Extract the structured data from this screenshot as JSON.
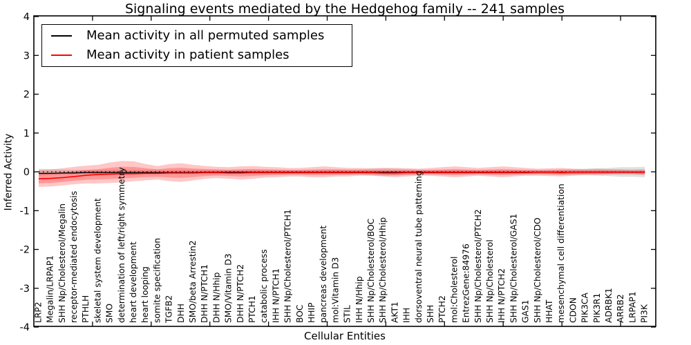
{
  "chart_data": {
    "type": "line",
    "title": "Signaling events mediated by the Hedgehog family -- 241 samples",
    "xlabel": "Cellular Entities",
    "ylabel": "Inferred Activity",
    "ylim": [
      -4,
      4
    ],
    "yticks": [
      4,
      3,
      2,
      1,
      0,
      -1,
      -2,
      -3,
      -4
    ],
    "xtick_values": [
      5,
      10,
      15,
      20,
      25,
      30,
      35,
      40,
      45,
      50
    ],
    "grid": false,
    "legend_position": "upper left",
    "zero_reference_line": "dotted",
    "categories": [
      "LRP2",
      "Megalin/LRPAP1",
      "SHH Np/Cholesterol/Megalin",
      "receptor-mediated endocytosis",
      "PTHLH",
      "skeletal system development",
      "SMO",
      "determination of left/right symmetry",
      "heart development",
      "heart looping",
      "somite specification",
      "TGFB2",
      "DHH",
      "SMO/beta Arrestin2",
      "DHH N/PTCH1",
      "DHH N/Hhip",
      "SMO/Vitamin D3",
      "DHH N/PTCH2",
      "PTCH1",
      "catabolic process",
      "IHH N/PTCH1",
      "SHH Np/Cholesterol/PTCH1",
      "BOC",
      "HHIP",
      "pancreas development",
      "mol:Vitamin D3",
      "STIL",
      "IHH N/Hhip",
      "SHH Np/Cholesterol/BOC",
      "SHH Np/Cholesterol/Hhip",
      "AKT1",
      "IHH",
      "dorsoventral neural tube patterning",
      "SHH",
      "PTCH2",
      "mol:Cholesterol",
      "EntrezGene:84976",
      "SHH Np/Cholesterol/PTCH2",
      "SHH Np/Cholesterol",
      "IHH N/PTCH2",
      "SHH Np/Cholesterol/GAS1",
      "GAS1",
      "SHH Np/Cholesterol/CDO",
      "HHAT",
      "mesenchymal cell differentiation",
      "CDON",
      "PIK3CA",
      "PIK3R1",
      "ADRBK1",
      "ARRB2",
      "LRPAP1",
      "PI3K"
    ],
    "series": [
      {
        "name": "Mean activity in all permuted samples",
        "color": "#000000",
        "band_color": "#aaaaaa",
        "values": [
          -0.04,
          -0.04,
          -0.03,
          -0.03,
          -0.02,
          -0.02,
          -0.02,
          -0.02,
          -0.02,
          -0.02,
          -0.02,
          -0.02,
          -0.02,
          -0.02,
          -0.01,
          -0.01,
          -0.01,
          -0.01,
          -0.01,
          -0.01,
          -0.01,
          -0.01,
          -0.01,
          -0.01,
          -0.01,
          -0.01,
          -0.01,
          -0.01,
          -0.01,
          -0.01,
          -0.01,
          -0.01,
          -0.01,
          -0.01,
          -0.01,
          -0.01,
          -0.01,
          -0.01,
          -0.01,
          -0.01,
          -0.01,
          -0.01,
          -0.01,
          -0.01,
          -0.01,
          -0.01,
          -0.01,
          -0.01,
          -0.01,
          -0.01,
          -0.01,
          -0.01
        ],
        "band_upper": [
          0.08,
          0.07,
          0.06,
          0.05,
          0.05,
          0.05,
          0.05,
          0.05,
          0.05,
          0.05,
          0.05,
          0.05,
          0.05,
          0.05,
          0.05,
          0.05,
          0.05,
          0.05,
          0.05,
          0.05,
          0.05,
          0.05,
          0.05,
          0.05,
          0.05,
          0.06,
          0.06,
          0.06,
          0.08,
          0.09,
          0.08,
          0.07,
          0.06,
          0.05,
          0.05,
          0.05,
          0.05,
          0.05,
          0.05,
          0.05,
          0.05,
          0.05,
          0.05,
          0.05,
          0.06,
          0.07,
          0.08,
          0.09,
          0.1,
          0.12,
          0.12,
          0.13
        ],
        "band_lower": [
          -0.1,
          -0.08,
          -0.07,
          -0.06,
          -0.06,
          -0.06,
          -0.06,
          -0.06,
          -0.06,
          -0.06,
          -0.06,
          -0.06,
          -0.06,
          -0.06,
          -0.06,
          -0.06,
          -0.06,
          -0.06,
          -0.06,
          -0.06,
          -0.06,
          -0.06,
          -0.06,
          -0.06,
          -0.06,
          -0.07,
          -0.07,
          -0.07,
          -0.09,
          -0.1,
          -0.09,
          -0.08,
          -0.07,
          -0.06,
          -0.06,
          -0.06,
          -0.06,
          -0.06,
          -0.06,
          -0.06,
          -0.06,
          -0.06,
          -0.06,
          -0.06,
          -0.07,
          -0.08,
          -0.09,
          -0.1,
          -0.11,
          -0.13,
          -0.13,
          -0.14
        ]
      },
      {
        "name": "Mean activity in patient samples",
        "color": "#ff0000",
        "band_color": "#ff0000",
        "values": [
          -0.18,
          -0.17,
          -0.15,
          -0.12,
          -0.09,
          -0.07,
          -0.06,
          -0.05,
          -0.05,
          -0.04,
          -0.04,
          -0.03,
          -0.03,
          -0.03,
          -0.02,
          -0.02,
          -0.03,
          -0.03,
          -0.02,
          -0.02,
          -0.02,
          -0.02,
          -0.02,
          -0.02,
          -0.02,
          -0.02,
          -0.02,
          -0.02,
          -0.02,
          -0.03,
          -0.03,
          -0.02,
          -0.02,
          -0.02,
          -0.02,
          -0.02,
          -0.02,
          -0.02,
          -0.02,
          -0.02,
          -0.02,
          -0.02,
          -0.01,
          -0.01,
          -0.02,
          -0.01,
          -0.01,
          -0.01,
          -0.01,
          -0.01,
          -0.01,
          -0.01
        ],
        "band_upper": [
          0.05,
          0.06,
          0.09,
          0.13,
          0.16,
          0.18,
          0.24,
          0.28,
          0.27,
          0.2,
          0.15,
          0.2,
          0.22,
          0.18,
          0.15,
          0.13,
          0.12,
          0.14,
          0.15,
          0.13,
          0.12,
          0.1,
          0.1,
          0.12,
          0.14,
          0.12,
          0.1,
          0.1,
          0.09,
          0.1,
          0.1,
          0.09,
          0.08,
          0.1,
          0.12,
          0.14,
          0.12,
          0.1,
          0.12,
          0.14,
          0.12,
          0.1,
          0.08,
          0.09,
          0.1,
          0.08,
          0.07,
          0.08,
          0.07,
          0.06,
          0.05,
          0.06
        ],
        "band_lower": [
          -0.39,
          -0.38,
          -0.35,
          -0.32,
          -0.3,
          -0.3,
          -0.29,
          -0.27,
          -0.24,
          -0.22,
          -0.2,
          -0.24,
          -0.26,
          -0.22,
          -0.18,
          -0.16,
          -0.18,
          -0.2,
          -0.18,
          -0.15,
          -0.14,
          -0.12,
          -0.12,
          -0.14,
          -0.14,
          -0.12,
          -0.12,
          -0.1,
          -0.1,
          -0.12,
          -0.14,
          -0.12,
          -0.1,
          -0.1,
          -0.12,
          -0.14,
          -0.12,
          -0.1,
          -0.12,
          -0.14,
          -0.12,
          -0.1,
          -0.1,
          -0.11,
          -0.12,
          -0.1,
          -0.08,
          -0.08,
          -0.07,
          -0.06,
          -0.06,
          -0.08
        ]
      }
    ]
  }
}
